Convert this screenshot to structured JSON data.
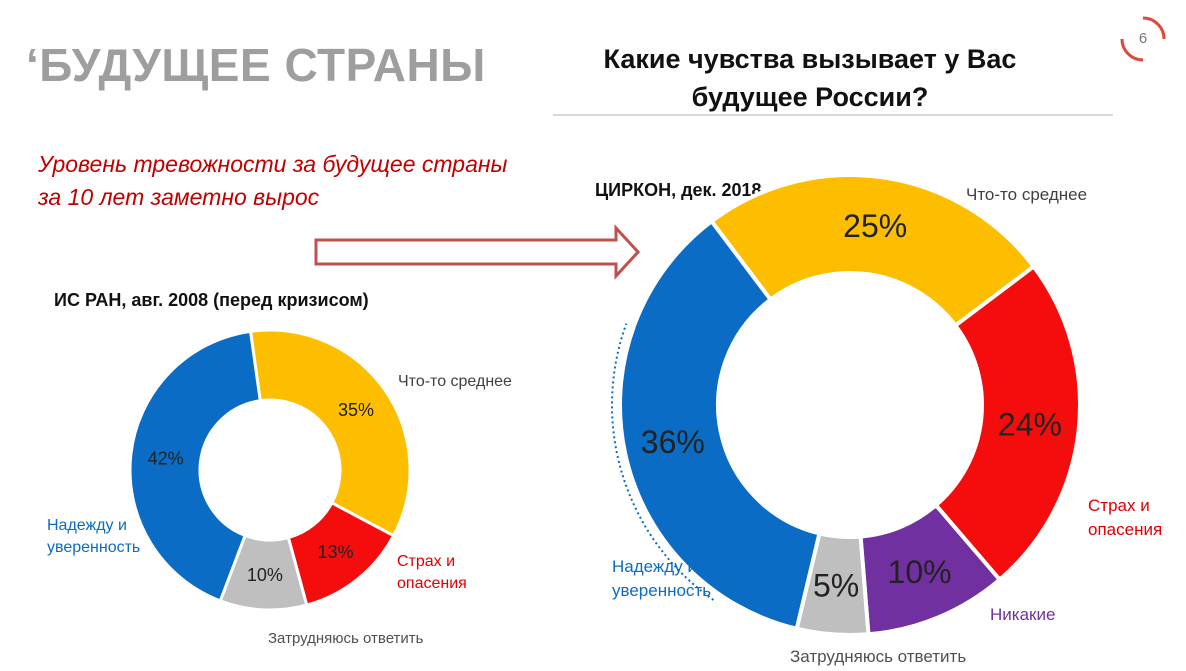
{
  "header": {
    "title": "‘БУДУЩЕЕ СТРАНЫ",
    "question": "Какие чувства вызывает у Вас будущее России?",
    "page_number": "6",
    "subtitle_line1": "Уровень тревожности за будущее страны",
    "subtitle_line2": "за 10 лет заметно вырос"
  },
  "colors": {
    "blue": "#0a6cc4",
    "yellow": "#fdbe00",
    "red": "#f50d0d",
    "gray": "#bfbfbf",
    "purple": "#7030a0",
    "subtitle": "#c00000",
    "arrow": "#c0504d"
  },
  "chart_data": [
    {
      "type": "pie",
      "title": "ИС РАН, авг. 2008 (перед кризисом)",
      "categories": [
        "Что-то среднее",
        "Страх и опасения",
        "Затрудняюсь ответить",
        "Надежду и уверенность"
      ],
      "values": [
        35,
        13,
        10,
        42
      ],
      "value_labels": [
        "35%",
        "13%",
        "10%",
        "42%"
      ],
      "legend": {
        "middle": "Что-то среднее",
        "fear_line1": "Страх и",
        "fear_line2": "опасения",
        "difficult": "Затрудняюсь ответить",
        "hope_line1": "Надежду и",
        "hope_line2": "уверенность"
      }
    },
    {
      "type": "pie",
      "title": "ЦИРКОН, дек. 2018",
      "categories": [
        "Что-то среднее",
        "Страх и опасения",
        "Никакие",
        "Затрудняюсь ответить",
        "Надежду и уверенность"
      ],
      "values": [
        25,
        24,
        10,
        5,
        36
      ],
      "value_labels": [
        "25%",
        "24%",
        "10%",
        "5%",
        "36%"
      ],
      "legend": {
        "middle": "Что-то среднее",
        "fear_line1": "Страх и",
        "fear_line2": "опасения",
        "none": "Никакие",
        "difficult": "Затрудняюсь ответить",
        "hope_line1": "Надежду и",
        "hope_line2": "уверенность"
      }
    }
  ]
}
